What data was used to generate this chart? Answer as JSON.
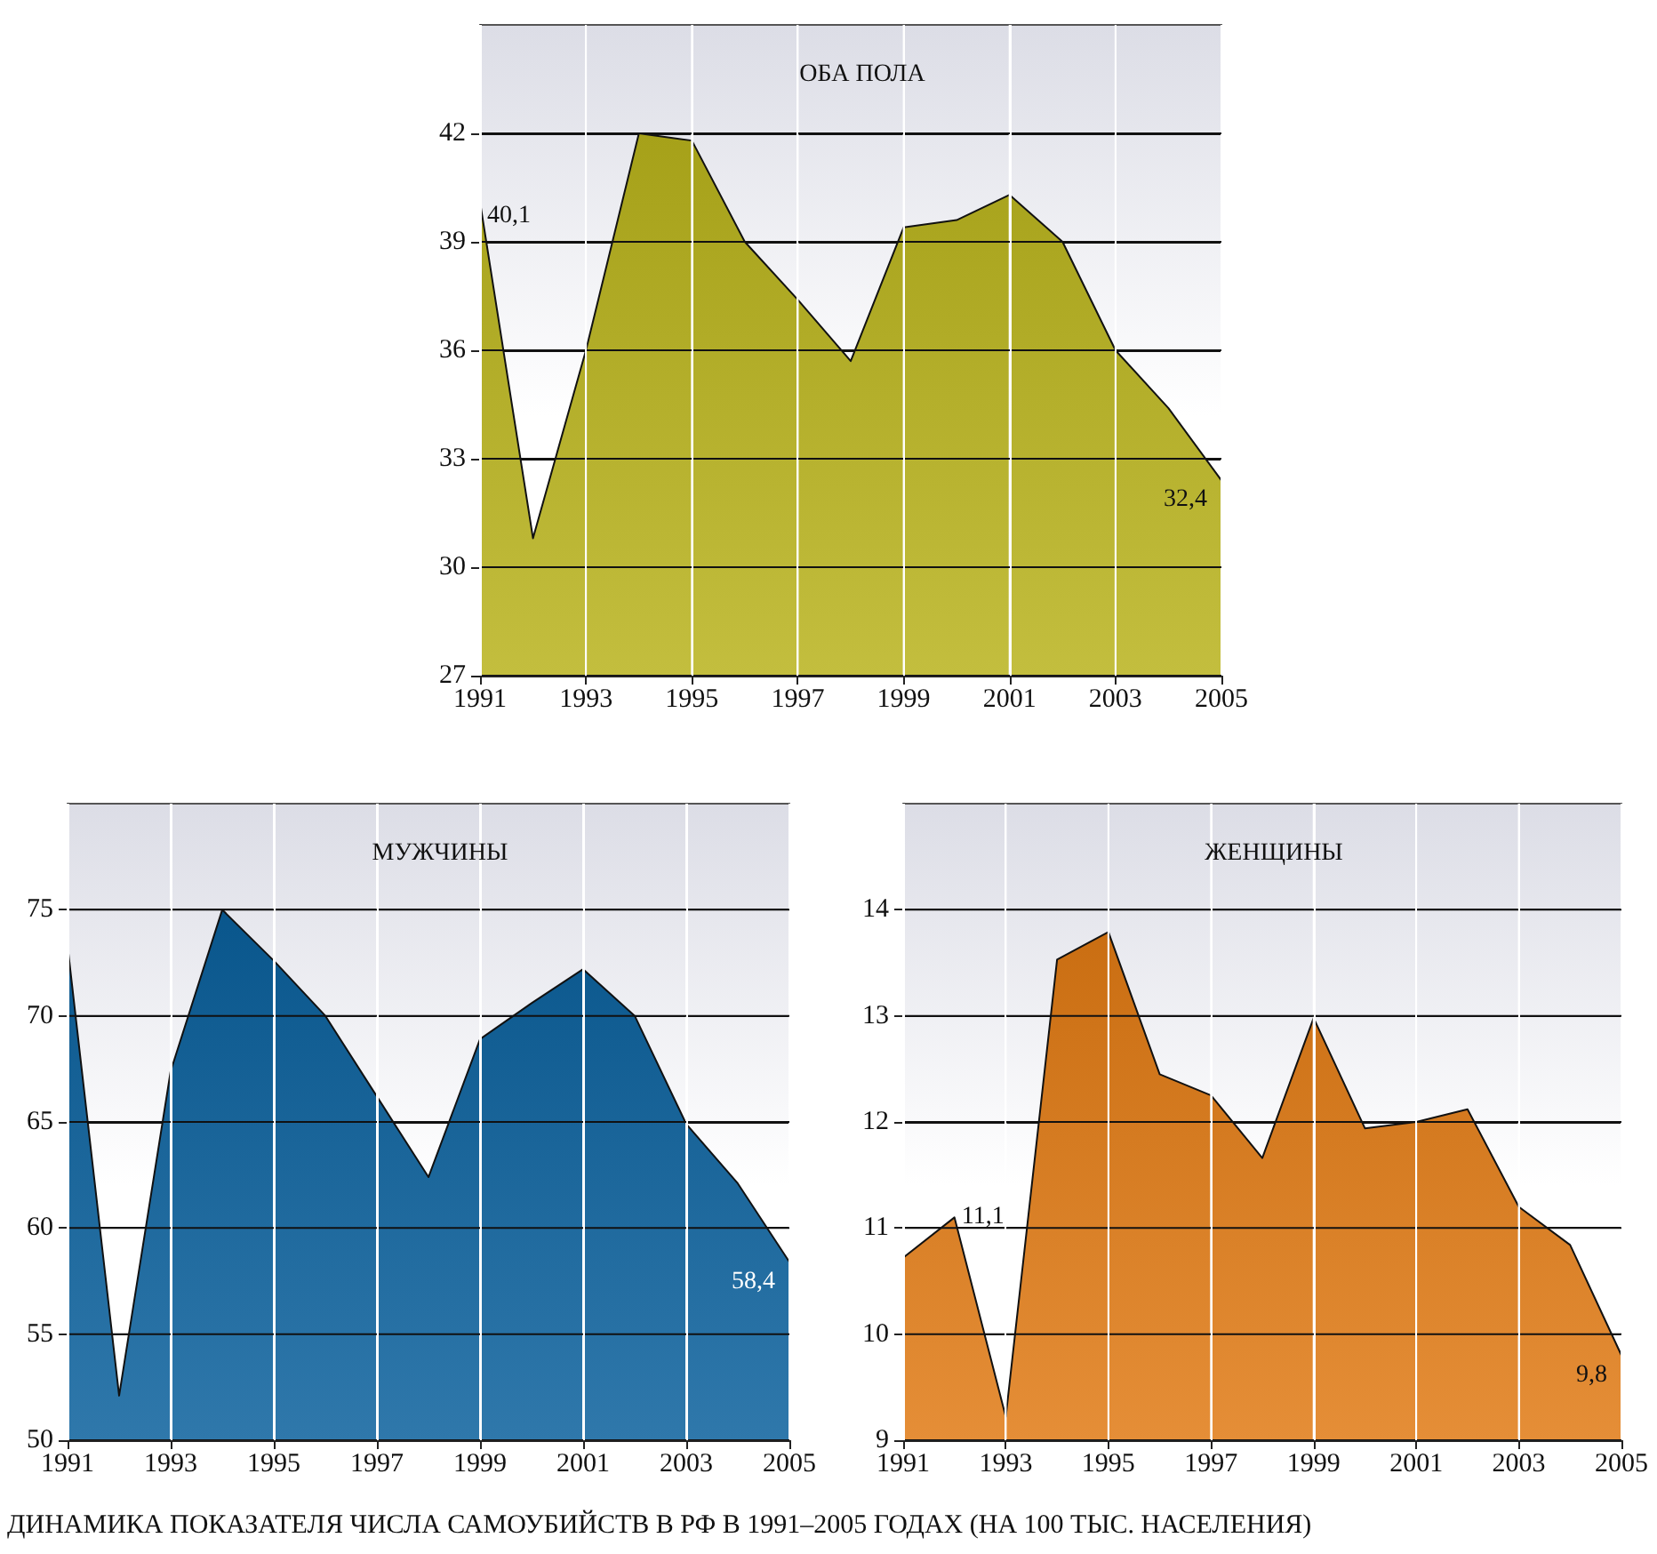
{
  "chart_data": [
    {
      "type": "area",
      "title": "ОБА ПОЛА",
      "x": [
        1991,
        1992,
        1993,
        1994,
        1995,
        1996,
        1997,
        1998,
        1999,
        2000,
        2001,
        2002,
        2003,
        2004,
        2005
      ],
      "series": [
        {
          "color": "#b8b31c",
          "values": [
            40.1,
            30.8,
            36.0,
            42.0,
            41.8,
            39.0,
            37.4,
            35.7,
            39.4,
            39.6,
            40.3,
            39.0,
            36.0,
            34.4,
            32.4
          ],
          "value_labels": [
            "40,1",
            null,
            null,
            null,
            null,
            null,
            null,
            null,
            null,
            null,
            null,
            null,
            null,
            null,
            "32,4"
          ]
        }
      ],
      "xlim": [
        1991,
        2005
      ],
      "xticks": [
        1991,
        1993,
        1995,
        1997,
        1999,
        2001,
        2003,
        2005
      ],
      "ylim": [
        27,
        45
      ],
      "yticks": [
        27,
        30,
        33,
        36,
        39,
        42
      ],
      "grid": true,
      "annotations": [
        "ДИНАМИКА ПОКАЗАТЕЛЯ ЧИСЛА САМОУБИЙСТВ В РФ В 1991–2005 ГОДАХ (НА 100 ТЫС. НАСЕЛЕНИЯ)"
      ]
    },
    {
      "type": "area",
      "title": "МУЖЧИНЫ",
      "x": [
        1991,
        1992,
        1993,
        1994,
        1995,
        1996,
        1997,
        1998,
        1999,
        2000,
        2001,
        2002,
        2003,
        2004,
        2005
      ],
      "series": [
        {
          "color": "#0a609c",
          "values": [
            73.3,
            52.1,
            67.4,
            75.0,
            72.6,
            70.0,
            66.2,
            62.4,
            68.9,
            70.6,
            72.2,
            70.0,
            64.9,
            62.1,
            58.4
          ],
          "value_labels": [
            null,
            null,
            null,
            null,
            null,
            null,
            null,
            null,
            null,
            null,
            null,
            null,
            null,
            null,
            "58,4"
          ]
        }
      ],
      "xlim": [
        1991,
        2005
      ],
      "xticks": [
        1991,
        1993,
        1995,
        1997,
        1999,
        2001,
        2003,
        2005
      ],
      "ylim": [
        50,
        80
      ],
      "yticks": [
        50,
        55,
        60,
        65,
        70,
        75
      ],
      "grid": true
    },
    {
      "type": "area",
      "title": "ЖЕНЩИНЫ",
      "x": [
        1991,
        1992,
        1993,
        1994,
        1995,
        1996,
        1997,
        1998,
        1999,
        2000,
        2001,
        2002,
        2003,
        2004,
        2005
      ],
      "series": [
        {
          "color": "#e07a14",
          "values": [
            10.72,
            11.1,
            9.22,
            13.53,
            13.79,
            12.45,
            12.25,
            11.66,
            12.98,
            11.94,
            12.0,
            12.12,
            11.2,
            10.84,
            9.8
          ],
          "value_labels": [
            null,
            "11,1",
            null,
            null,
            null,
            null,
            null,
            null,
            null,
            null,
            null,
            null,
            null,
            null,
            "9,8"
          ]
        }
      ],
      "xlim": [
        1991,
        2005
      ],
      "xticks": [
        1991,
        1993,
        1995,
        1997,
        1999,
        2001,
        2003,
        2005
      ],
      "ylim": [
        9,
        15
      ],
      "yticks": [
        9,
        10,
        11,
        12,
        13,
        14
      ],
      "grid": true
    }
  ]
}
